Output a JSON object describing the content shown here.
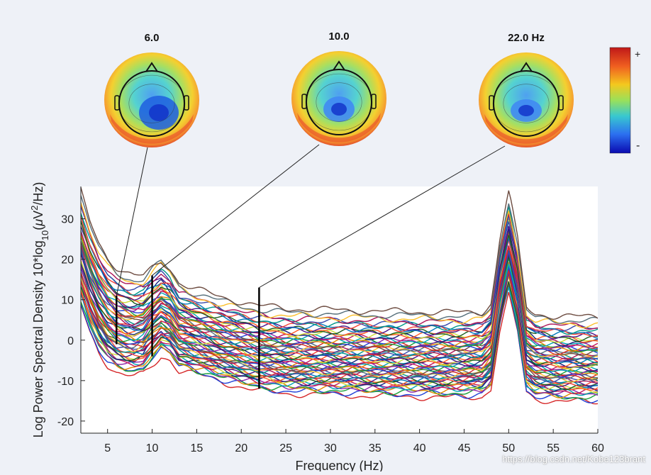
{
  "chart_data": {
    "type": "line",
    "title": "",
    "xlabel": "Frequency (Hz)",
    "ylabel": "Log Power Spectral Density 10*log10(μV²/Hz)",
    "ylabel_parts": {
      "main": "Log Power Spectral Density 10*log",
      "sub": "10",
      "pre": "(",
      "mu": "μ",
      "unit": "V",
      "sup": "2",
      "post": "/Hz)"
    },
    "xlim": [
      2,
      60
    ],
    "ylim": [
      -23,
      38
    ],
    "xticks": [
      5,
      10,
      15,
      20,
      25,
      30,
      35,
      40,
      45,
      50,
      55,
      60
    ],
    "yticks": [
      -20,
      -10,
      0,
      10,
      20,
      30
    ],
    "channel_count": 60,
    "channel_offsets": [
      -10,
      -9.3,
      -8.8,
      -8.3,
      -8,
      -7.6,
      -7.3,
      -7,
      -6.8,
      -6.5,
      -6.2,
      -6,
      -5.7,
      -5.4,
      -5.1,
      -4.8,
      -4.6,
      -4.3,
      -4,
      -3.8,
      -3.5,
      -3.2,
      -3,
      -2.7,
      -2.4,
      -2.1,
      -1.8,
      -1.5,
      -1.2,
      -0.9,
      -0.6,
      -0.3,
      0,
      0.3,
      0.6,
      0.9,
      1.2,
      1.5,
      1.8,
      2.1,
      2.4,
      2.7,
      3,
      3.3,
      3.6,
      3.9,
      4.2,
      4.6,
      5,
      5.4,
      5.8,
      6.2,
      6.6,
      7,
      7.5,
      8,
      8.6,
      9.2,
      10,
      11
    ],
    "profile": {
      "freq": [
        2,
        3,
        4,
        5,
        6,
        7,
        8,
        9,
        10,
        11,
        12,
        13,
        15,
        18,
        20,
        22,
        25,
        30,
        35,
        40,
        45,
        47,
        48,
        49,
        50,
        51,
        52,
        53,
        55,
        58,
        60
      ],
      "power": [
        22,
        15,
        10,
        6.5,
        4.5,
        3.5,
        3,
        3.5,
        6,
        8,
        6.5,
        3,
        1.5,
        -0.5,
        -1.5,
        -2.5,
        -3.2,
        -3.5,
        -3.8,
        -4,
        -4.2,
        -4,
        -2,
        12,
        21,
        12,
        -3,
        -4.5,
        -5,
        -5.2,
        -5.3
      ]
    },
    "marked_frequencies": [
      6,
      10,
      22
    ],
    "markers": [
      {
        "freq": 6,
        "ymin": -1,
        "ymax": 11,
        "map_label": "6.0"
      },
      {
        "freq": 10,
        "ymin": -4,
        "ymax": 16,
        "map_label": "10.0"
      },
      {
        "freq": 22,
        "ymin": -12,
        "ymax": 13,
        "map_label": "22.0 Hz"
      }
    ],
    "colorbar": {
      "plus": "+",
      "minus": "-"
    },
    "colors": {
      "palette": [
        "#d62728",
        "#1f3fd6",
        "#1a9e3a",
        "#e08a00",
        "#8e24aa",
        "#00a5b5",
        "#c2185b",
        "#1a237e",
        "#cddc39",
        "#ff5722",
        "#1b5e20",
        "#4a148c",
        "#0277bd",
        "#f44336",
        "#009688",
        "#3949ab",
        "#ad1457",
        "#fbc02d",
        "#546e7a",
        "#6d4c41"
      ],
      "plot_bg": "#ffffff",
      "page_bg": "#eef1f7",
      "marker": "#000000"
    }
  },
  "watermark": "https://blog.csdn.net/Kobe123brant"
}
